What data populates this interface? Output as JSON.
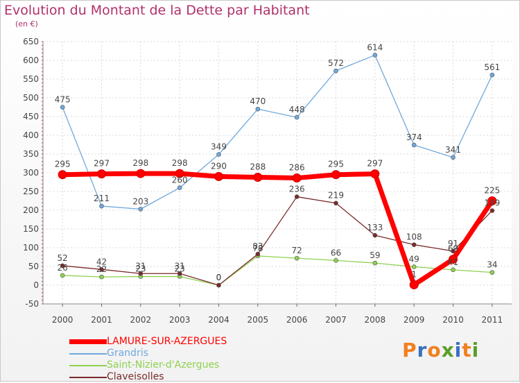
{
  "header": {
    "title": "Evolution du Montant de la Dette par Habitant",
    "unit": "(en €)"
  },
  "brand": {
    "text": "Proxiti",
    "letter_colors": [
      "#f08020",
      "#3a6fc0",
      "#f08020",
      "#5a9e2a",
      "#3a6fc0",
      "#f08020",
      "#5a9e2a"
    ]
  },
  "chart_data": {
    "type": "line",
    "title": "Evolution du Montant de la Dette par Habitant",
    "subtitle": "(en €)",
    "x": [
      "2000",
      "2001",
      "2002",
      "2003",
      "2004",
      "2005",
      "2006",
      "2007",
      "2008",
      "2009",
      "2010",
      "2011"
    ],
    "ylim": [
      -50,
      650
    ],
    "yticks": [
      -50,
      0,
      50,
      100,
      150,
      200,
      250,
      300,
      350,
      400,
      450,
      500,
      550,
      600,
      650
    ],
    "grid": true,
    "legend_position": "bottom-left",
    "series": [
      {
        "name": "LAMURE-SUR-AZERGUES",
        "color": "#ff0000",
        "emphasis": true,
        "values": [
          295,
          297,
          298,
          298,
          290,
          288,
          286,
          295,
          297,
          1,
          69,
          225
        ],
        "labels": [
          "295",
          "297",
          "298",
          "298",
          "290",
          "288",
          "286",
          "295",
          "297",
          "1",
          "69",
          "225"
        ]
      },
      {
        "name": "Grandris",
        "color": "#6fa8dc",
        "emphasis": false,
        "values": [
          475,
          211,
          203,
          260,
          349,
          470,
          448,
          572,
          614,
          374,
          341,
          561
        ],
        "labels": [
          "475",
          "211",
          "203",
          "260",
          "349",
          "470",
          "448",
          "572",
          "614",
          "374",
          "341",
          "561"
        ]
      },
      {
        "name": "Saint-Nizier-d'Azergues",
        "color": "#8fd14f",
        "emphasis": false,
        "values": [
          26,
          22,
          23,
          23,
          0,
          78,
          72,
          66,
          59,
          49,
          41,
          34
        ],
        "labels": [
          "26",
          "22",
          "23",
          "23",
          "0",
          "78",
          "72",
          "66",
          "59",
          "49",
          "41",
          "34"
        ]
      },
      {
        "name": "Claveisolles",
        "color": "#7a2a2a",
        "emphasis": false,
        "values": [
          52,
          42,
          31,
          31,
          0,
          83,
          236,
          219,
          133,
          108,
          91,
          199
        ],
        "labels": [
          "52",
          "42",
          "31",
          "31",
          "0",
          "83",
          "236",
          "219",
          "133",
          "108",
          "91",
          "199"
        ]
      }
    ]
  }
}
